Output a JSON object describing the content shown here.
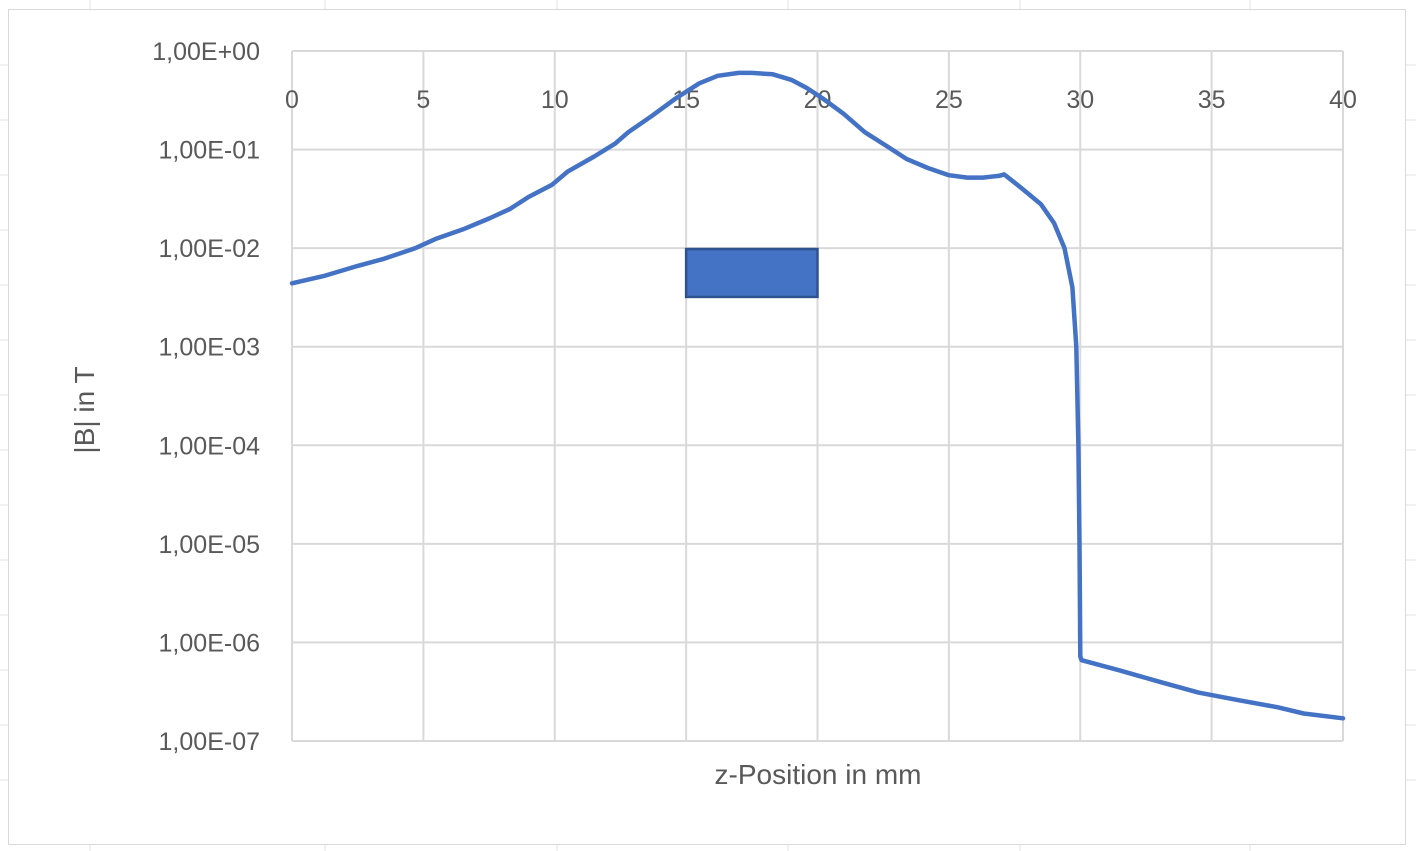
{
  "theme": {
    "series_color": "#4472c4",
    "rect_fill": "#4472c4",
    "rect_stroke": "#2f528f",
    "grid_color": "#d9d9d9",
    "text_color": "#595959"
  },
  "chart_data": {
    "type": "line",
    "title": "",
    "xlabel": "z-Position in mm",
    "ylabel": "|B| in T",
    "x_axis_position": "top",
    "xlim": [
      0,
      40
    ],
    "ylim": [
      1e-07,
      1
    ],
    "y_scale": "log",
    "grid": true,
    "legend": "none",
    "x_ticks": [
      "0",
      "5",
      "10",
      "15",
      "20",
      "25",
      "30",
      "35",
      "40"
    ],
    "y_ticks": [
      "1,00E+00",
      "1,00E-01",
      "1,00E-02",
      "1,00E-03",
      "1,00E-04",
      "1,00E-05",
      "1,00E-06",
      "1,00E-07"
    ],
    "series": [
      {
        "x": [
          0,
          1.2,
          2.5,
          3.5,
          4.7,
          5.5,
          6.5,
          7.5,
          8.3,
          9.0,
          9.9,
          10.5,
          11.5,
          12.3,
          12.8,
          13.7,
          14.6,
          15.5,
          16.2,
          17.0,
          17.5,
          18.3,
          19.0,
          19.6,
          20.2,
          21.0,
          21.8,
          22.6,
          23.4,
          24.2,
          25.0,
          25.7,
          26.3,
          26.6,
          26.9,
          27.1,
          27.6,
          28.0,
          28.5,
          29.0,
          29.4,
          29.7,
          29.85,
          29.93,
          29.97,
          30.0,
          30.05,
          31.5,
          33.0,
          34.5,
          36.0,
          37.5,
          38.5,
          40.0
        ],
        "y": [
          0.0044,
          0.0052,
          0.0066,
          0.0078,
          0.01,
          0.0125,
          0.0155,
          0.02,
          0.025,
          0.033,
          0.044,
          0.06,
          0.085,
          0.115,
          0.15,
          0.22,
          0.33,
          0.47,
          0.56,
          0.6,
          0.6,
          0.58,
          0.51,
          0.42,
          0.33,
          0.23,
          0.15,
          0.11,
          0.08,
          0.065,
          0.055,
          0.052,
          0.052,
          0.053,
          0.054,
          0.056,
          0.044,
          0.036,
          0.028,
          0.018,
          0.01,
          0.004,
          0.001,
          0.0001,
          1e-05,
          7.2e-07,
          6.6e-07,
          5.2e-07,
          4e-07,
          3.1e-07,
          2.6e-07,
          2.2e-07,
          1.9e-07,
          1.7e-07
        ]
      }
    ],
    "annotations": [
      {
        "type": "rectangle",
        "x0": 15.0,
        "x1": 20.0,
        "y_top": 0.0098,
        "y_bottom": 0.0032
      }
    ]
  }
}
